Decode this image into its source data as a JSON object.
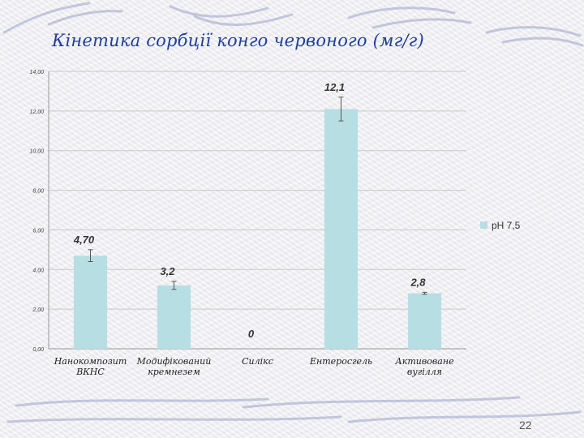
{
  "slide": {
    "title": "Кінетика сорбції конго червоного (мг/г)",
    "page_number": "22"
  },
  "colors": {
    "title": "#1f3f9a",
    "bar": "#b7dfe3",
    "grid": "#c8c8c8",
    "error_bar": "#555555",
    "swirl": "#9aa3c8"
  },
  "chart_data": {
    "type": "bar",
    "categories": [
      [
        "Нанокомпозит",
        "ВКНС"
      ],
      [
        "Модифікований",
        "кремнезем"
      ],
      [
        "Силікс"
      ],
      [
        "Ентеросгель"
      ],
      [
        "Активоване",
        "вугілля"
      ]
    ],
    "series": [
      {
        "name": "pH 7,5",
        "values": [
          4.7,
          3.2,
          0,
          12.1,
          2.8
        ],
        "data_labels": [
          "4,70",
          "3,2",
          "0",
          "12,1",
          "2,8"
        ],
        "error": [
          0.3,
          0.2,
          0,
          0.6,
          0.05
        ]
      }
    ],
    "ylim": [
      0,
      14
    ],
    "yticks": [
      0,
      2,
      4,
      6,
      8,
      10,
      12,
      14
    ],
    "ytick_labels": [
      "0,00",
      "2,00",
      "4,00",
      "6,00",
      "8,00",
      "10,00",
      "12,00",
      "14,00"
    ],
    "grid": true,
    "legend_position": "right"
  }
}
